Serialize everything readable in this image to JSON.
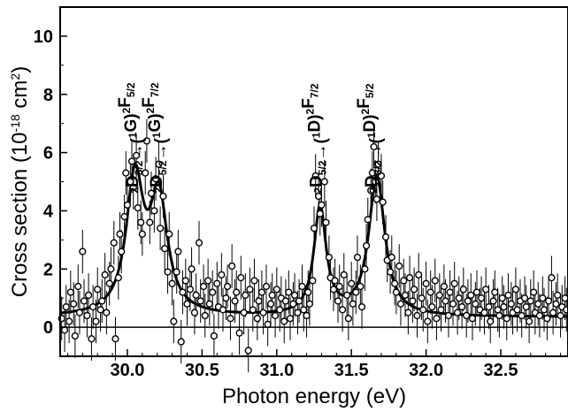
{
  "chart_data": {
    "type": "scatter",
    "xlabel": "Photon energy (eV)",
    "ylabel": "Cross section (10",
    "ylabel_sup": "-18",
    "ylabel_unit": " cm",
    "ylabel_unit_sup": "2",
    "ylabel_close": ")",
    "xlim": [
      29.55,
      32.95
    ],
    "ylim": [
      -1,
      11
    ],
    "xticks": [
      30.0,
      30.5,
      31.0,
      31.5,
      32.0,
      32.5
    ],
    "xtick_labels": [
      "30.0",
      "30.5",
      "31.0",
      "31.5",
      "32.0",
      "32.5"
    ],
    "yticks": [
      0,
      2,
      4,
      6,
      8,
      10
    ],
    "ytick_labels": [
      "0",
      "2",
      "4",
      "6",
      "8",
      "10"
    ],
    "baseline_y": 0,
    "fit_model": {
      "background": 0.35,
      "peaks": [
        {
          "x0": 30.05,
          "height": 4.6,
          "gamma": 0.07
        },
        {
          "x0": 30.21,
          "height": 3.9,
          "gamma": 0.07
        },
        {
          "x0": 31.29,
          "height": 3.7,
          "gamma": 0.05
        },
        {
          "x0": 31.67,
          "height": 4.8,
          "gamma": 0.065
        }
      ]
    },
    "annotations": [
      {
        "x": 30.07,
        "parts": [
          [
            "2",
            "sup"
          ],
          [
            "D",
            ""
          ],
          [
            "3/2",
            "sub"
          ],
          [
            "→(",
            ""
          ],
          [
            "1",
            "sup"
          ],
          [
            "G)",
            ""
          ],
          [
            "2",
            "sup"
          ],
          [
            "F",
            ""
          ],
          [
            "5/2",
            "sub"
          ]
        ]
      },
      {
        "x": 30.23,
        "parts": [
          [
            "2",
            "sup"
          ],
          [
            "D",
            ""
          ],
          [
            "5/2",
            "sub"
          ],
          [
            "→(",
            ""
          ],
          [
            "1",
            "sup"
          ],
          [
            "G)",
            ""
          ],
          [
            "2",
            "sup"
          ],
          [
            "F",
            ""
          ],
          [
            "7/2",
            "sub"
          ]
        ]
      },
      {
        "x": 31.3,
        "parts": [
          [
            "2",
            "sup"
          ],
          [
            "D",
            ""
          ],
          [
            "5/2",
            "sub"
          ],
          [
            "→(",
            ""
          ],
          [
            "1",
            "sup"
          ],
          [
            "D)",
            ""
          ],
          [
            "2",
            "sup"
          ],
          [
            "F",
            ""
          ],
          [
            "7/2",
            "sub"
          ]
        ]
      },
      {
        "x": 31.67,
        "parts": [
          [
            "2",
            "sup"
          ],
          [
            "D",
            ""
          ],
          [
            "3/2",
            "sub"
          ],
          [
            "→(",
            ""
          ],
          [
            "1",
            "sup"
          ],
          [
            "D)",
            ""
          ],
          [
            "2",
            "sup"
          ],
          [
            "F",
            ""
          ],
          [
            "5/2",
            "sub"
          ]
        ]
      }
    ],
    "points": [
      [
        29.56,
        0.3
      ],
      [
        29.58,
        -0.1
      ],
      [
        29.59,
        0.7
      ],
      [
        29.61,
        0.2
      ],
      [
        29.62,
        1.2
      ],
      [
        29.64,
        0.8
      ],
      [
        29.65,
        -0.3
      ],
      [
        29.67,
        1.4
      ],
      [
        29.68,
        0.5
      ],
      [
        29.7,
        2.6
      ],
      [
        29.71,
        0.9
      ],
      [
        29.73,
        0.4
      ],
      [
        29.74,
        1.1
      ],
      [
        29.76,
        -0.4
      ],
      [
        29.77,
        0.7
      ],
      [
        29.79,
        0.2
      ],
      [
        29.8,
        1.3
      ],
      [
        29.82,
        0.6
      ],
      [
        29.83,
        0.9
      ],
      [
        29.85,
        1.8
      ],
      [
        29.86,
        0.5
      ],
      [
        29.88,
        1.5
      ],
      [
        29.89,
        2.0
      ],
      [
        29.91,
        2.9
      ],
      [
        29.92,
        -0.4
      ],
      [
        29.94,
        1.7
      ],
      [
        29.95,
        3.2
      ],
      [
        29.96,
        2.6
      ],
      [
        29.98,
        3.8
      ],
      [
        29.99,
        5.3
      ],
      [
        30.0,
        4.2
      ],
      [
        30.02,
        5.0
      ],
      [
        30.03,
        5.7
      ],
      [
        30.04,
        4.8
      ],
      [
        30.06,
        5.9
      ],
      [
        30.07,
        4.1
      ],
      [
        30.09,
        3.6
      ],
      [
        30.1,
        3.2
      ],
      [
        30.12,
        5.3
      ],
      [
        30.13,
        6.4
      ],
      [
        30.15,
        3.6
      ],
      [
        30.16,
        4.6
      ],
      [
        30.18,
        4.0
      ],
      [
        30.19,
        5.1
      ],
      [
        30.21,
        5.6
      ],
      [
        30.22,
        3.4
      ],
      [
        30.24,
        4.5
      ],
      [
        30.25,
        2.7
      ],
      [
        30.27,
        1.9
      ],
      [
        30.28,
        3.2
      ],
      [
        30.3,
        1.5
      ],
      [
        30.31,
        0.2
      ],
      [
        30.33,
        1.9
      ],
      [
        30.34,
        2.6
      ],
      [
        30.36,
        -0.5
      ],
      [
        30.37,
        1.2
      ],
      [
        30.39,
        1.6
      ],
      [
        30.4,
        0.8
      ],
      [
        30.42,
        1.3
      ],
      [
        30.43,
        2.0
      ],
      [
        30.45,
        0.5
      ],
      [
        30.46,
        1.1
      ],
      [
        30.48,
        2.9
      ],
      [
        30.49,
        0.9
      ],
      [
        30.51,
        1.4
      ],
      [
        30.52,
        0.4
      ],
      [
        30.54,
        1.6
      ],
      [
        30.55,
        0.8
      ],
      [
        30.57,
        1.2
      ],
      [
        30.58,
        -0.3
      ],
      [
        30.6,
        1.5
      ],
      [
        30.61,
        0.7
      ],
      [
        30.63,
        1.8
      ],
      [
        30.64,
        0.6
      ],
      [
        30.66,
        1.0
      ],
      [
        30.67,
        1.4
      ],
      [
        30.69,
        0.3
      ],
      [
        30.7,
        2.1
      ],
      [
        30.72,
        0.9
      ],
      [
        30.73,
        1.2
      ],
      [
        30.75,
        -0.2
      ],
      [
        30.76,
        1.7
      ],
      [
        30.78,
        0.5
      ],
      [
        30.79,
        1.1
      ],
      [
        30.81,
        -0.8
      ],
      [
        30.82,
        1.3
      ],
      [
        30.84,
        0.6
      ],
      [
        30.85,
        1.6
      ],
      [
        30.87,
        0.3
      ],
      [
        30.88,
        0.9
      ],
      [
        30.9,
        1.2
      ],
      [
        30.91,
        0.5
      ],
      [
        30.93,
        1.4
      ],
      [
        30.94,
        0.1
      ],
      [
        30.96,
        0.8
      ],
      [
        30.97,
        1.1
      ],
      [
        30.99,
        0.4
      ],
      [
        31.0,
        1.3
      ],
      [
        31.02,
        0.6
      ],
      [
        31.03,
        1.0
      ],
      [
        31.05,
        0.2
      ],
      [
        31.06,
        0.9
      ],
      [
        31.08,
        1.2
      ],
      [
        31.09,
        0.3
      ],
      [
        31.11,
        0.8
      ],
      [
        31.12,
        1.1
      ],
      [
        31.14,
        0.5
      ],
      [
        31.15,
        0.9
      ],
      [
        31.17,
        1.4
      ],
      [
        31.18,
        0.6
      ],
      [
        31.2,
        0.4
      ],
      [
        31.21,
        1.2
      ],
      [
        31.22,
        0.8
      ],
      [
        31.24,
        1.6
      ],
      [
        31.25,
        3.4
      ],
      [
        31.26,
        5.2
      ],
      [
        31.28,
        4.5
      ],
      [
        31.29,
        3.9
      ],
      [
        31.3,
        4.2
      ],
      [
        31.32,
        5.0
      ],
      [
        31.33,
        3.6
      ],
      [
        31.35,
        2.4
      ],
      [
        31.36,
        1.7
      ],
      [
        31.38,
        1.3
      ],
      [
        31.39,
        1.6
      ],
      [
        31.41,
        0.9
      ],
      [
        31.42,
        1.4
      ],
      [
        31.44,
        0.6
      ],
      [
        31.45,
        1.8
      ],
      [
        31.47,
        1.1
      ],
      [
        31.48,
        0.3
      ],
      [
        31.5,
        1.5
      ],
      [
        31.51,
        0.8
      ],
      [
        31.53,
        1.2
      ],
      [
        31.54,
        2.4
      ],
      [
        31.56,
        1.4
      ],
      [
        31.57,
        0.7
      ],
      [
        31.59,
        2.0
      ],
      [
        31.6,
        2.8
      ],
      [
        31.61,
        3.7
      ],
      [
        31.63,
        4.7
      ],
      [
        31.64,
        5.3
      ],
      [
        31.65,
        6.2
      ],
      [
        31.66,
        5.0
      ],
      [
        31.67,
        4.4
      ],
      [
        31.68,
        5.6
      ],
      [
        31.7,
        5.2
      ],
      [
        31.71,
        4.3
      ],
      [
        31.73,
        3.1
      ],
      [
        31.74,
        2.3
      ],
      [
        31.76,
        1.9
      ],
      [
        31.77,
        2.4
      ],
      [
        31.79,
        1.5
      ],
      [
        31.8,
        1.2
      ],
      [
        31.82,
        2.1
      ],
      [
        31.83,
        0.8
      ],
      [
        31.85,
        1.6
      ],
      [
        31.86,
        1.1
      ],
      [
        31.88,
        0.5
      ],
      [
        31.89,
        1.7
      ],
      [
        31.91,
        0.9
      ],
      [
        31.92,
        1.3
      ],
      [
        31.94,
        0.4
      ],
      [
        31.95,
        1.8
      ],
      [
        31.97,
        1.0
      ],
      [
        31.98,
        0.6
      ],
      [
        32.0,
        1.5
      ],
      [
        32.01,
        0.2
      ],
      [
        32.03,
        1.2
      ],
      [
        32.04,
        0.7
      ],
      [
        32.06,
        1.6
      ],
      [
        32.07,
        0.3
      ],
      [
        32.09,
        1.1
      ],
      [
        32.1,
        0.6
      ],
      [
        32.12,
        1.4
      ],
      [
        32.13,
        0.9
      ],
      [
        32.15,
        0.4
      ],
      [
        32.16,
        1.2
      ],
      [
        32.18,
        0.8
      ],
      [
        32.19,
        1.5
      ],
      [
        32.21,
        0.5
      ],
      [
        32.22,
        1.0
      ],
      [
        32.24,
        0.7
      ],
      [
        32.25,
        1.3
      ],
      [
        32.27,
        0.4
      ],
      [
        32.28,
        0.9
      ],
      [
        32.3,
        1.1
      ],
      [
        32.31,
        0.3
      ],
      [
        32.33,
        0.8
      ],
      [
        32.34,
        1.2
      ],
      [
        32.36,
        0.6
      ],
      [
        32.37,
        1.0
      ],
      [
        32.39,
        0.5
      ],
      [
        32.4,
        1.3
      ],
      [
        32.42,
        0.7
      ],
      [
        32.43,
        0.2
      ],
      [
        32.45,
        0.9
      ],
      [
        32.46,
        1.2
      ],
      [
        32.48,
        0.6
      ],
      [
        32.49,
        0.4
      ],
      [
        32.51,
        1.0
      ],
      [
        32.52,
        0.7
      ],
      [
        32.54,
        0.3
      ],
      [
        32.55,
        1.1
      ],
      [
        32.57,
        0.8
      ],
      [
        32.58,
        0.5
      ],
      [
        32.6,
        1.3
      ],
      [
        32.61,
        0.6
      ],
      [
        32.63,
        0.9
      ],
      [
        32.64,
        0.4
      ],
      [
        32.66,
        1.0
      ],
      [
        32.67,
        0.7
      ],
      [
        32.69,
        0.2
      ],
      [
        32.7,
        0.9
      ],
      [
        32.72,
        1.2
      ],
      [
        32.73,
        0.5
      ],
      [
        32.75,
        0.8
      ],
      [
        32.76,
        0.4
      ],
      [
        32.78,
        1.0
      ],
      [
        32.79,
        0.6
      ],
      [
        32.81,
        0.3
      ],
      [
        32.82,
        0.9
      ],
      [
        32.84,
        1.7
      ],
      [
        32.85,
        0.5
      ],
      [
        32.87,
        0.8
      ],
      [
        32.88,
        1.1
      ],
      [
        32.9,
        0.4
      ],
      [
        32.91,
        0.7
      ],
      [
        32.93,
        1.0
      ],
      [
        32.94,
        0.6
      ]
    ],
    "error_bar": 0.75
  }
}
